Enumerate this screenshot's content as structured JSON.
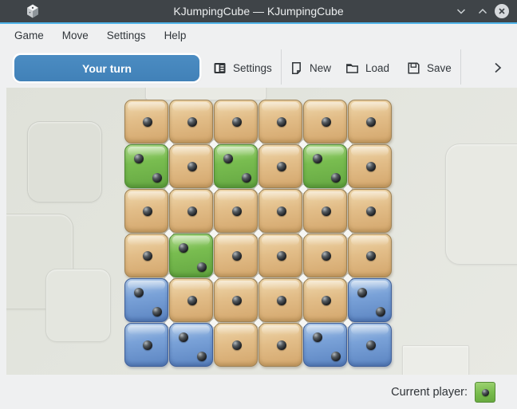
{
  "window": {
    "title": "KJumpingCube — KJumpingCube"
  },
  "menubar": {
    "items": [
      "Game",
      "Move",
      "Settings",
      "Help"
    ]
  },
  "toolbar": {
    "turn_indicator": "Your turn",
    "buttons": [
      {
        "label": "Settings",
        "icon": "settings-icon"
      },
      {
        "label": "New",
        "icon": "new-document-icon"
      },
      {
        "label": "Load",
        "icon": "open-folder-icon"
      },
      {
        "label": "Save",
        "icon": "save-icon"
      }
    ],
    "overflow_icon": "chevron-right-icon"
  },
  "board": {
    "rows": 6,
    "cols": 6,
    "owners_legend": {
      "neutral": "tan cube",
      "player1": "green cube",
      "player2": "blue cube"
    },
    "cells": [
      [
        {
          "owner": "neutral",
          "value": 1
        },
        {
          "owner": "neutral",
          "value": 1
        },
        {
          "owner": "neutral",
          "value": 1
        },
        {
          "owner": "neutral",
          "value": 1
        },
        {
          "owner": "neutral",
          "value": 1
        },
        {
          "owner": "neutral",
          "value": 1
        }
      ],
      [
        {
          "owner": "player1",
          "value": 2
        },
        {
          "owner": "neutral",
          "value": 1
        },
        {
          "owner": "player1",
          "value": 2
        },
        {
          "owner": "neutral",
          "value": 1
        },
        {
          "owner": "player1",
          "value": 2
        },
        {
          "owner": "neutral",
          "value": 1
        }
      ],
      [
        {
          "owner": "neutral",
          "value": 1
        },
        {
          "owner": "neutral",
          "value": 1
        },
        {
          "owner": "neutral",
          "value": 1
        },
        {
          "owner": "neutral",
          "value": 1
        },
        {
          "owner": "neutral",
          "value": 1
        },
        {
          "owner": "neutral",
          "value": 1
        }
      ],
      [
        {
          "owner": "neutral",
          "value": 1
        },
        {
          "owner": "player1",
          "value": 2
        },
        {
          "owner": "neutral",
          "value": 1
        },
        {
          "owner": "neutral",
          "value": 1
        },
        {
          "owner": "neutral",
          "value": 1
        },
        {
          "owner": "neutral",
          "value": 1
        }
      ],
      [
        {
          "owner": "player2",
          "value": 2
        },
        {
          "owner": "neutral",
          "value": 1
        },
        {
          "owner": "neutral",
          "value": 1
        },
        {
          "owner": "neutral",
          "value": 1
        },
        {
          "owner": "neutral",
          "value": 1
        },
        {
          "owner": "player2",
          "value": 2
        }
      ],
      [
        {
          "owner": "player2",
          "value": 1
        },
        {
          "owner": "player2",
          "value": 2
        },
        {
          "owner": "neutral",
          "value": 1
        },
        {
          "owner": "neutral",
          "value": 1
        },
        {
          "owner": "player2",
          "value": 2
        },
        {
          "owner": "player2",
          "value": 1
        }
      ]
    ]
  },
  "statusbar": {
    "label": "Current player:",
    "current_player": "player1"
  },
  "colors": {
    "titlebar": "#3f4448",
    "accent_line": "#4eb3e9",
    "chrome_bg": "#eff0f1",
    "board_bg": "#e3e5de",
    "turn_button": "#4687bd",
    "neutral_cube": "#ddb277",
    "player1_cube": "#74b94c",
    "player2_cube": "#6f97cf"
  }
}
